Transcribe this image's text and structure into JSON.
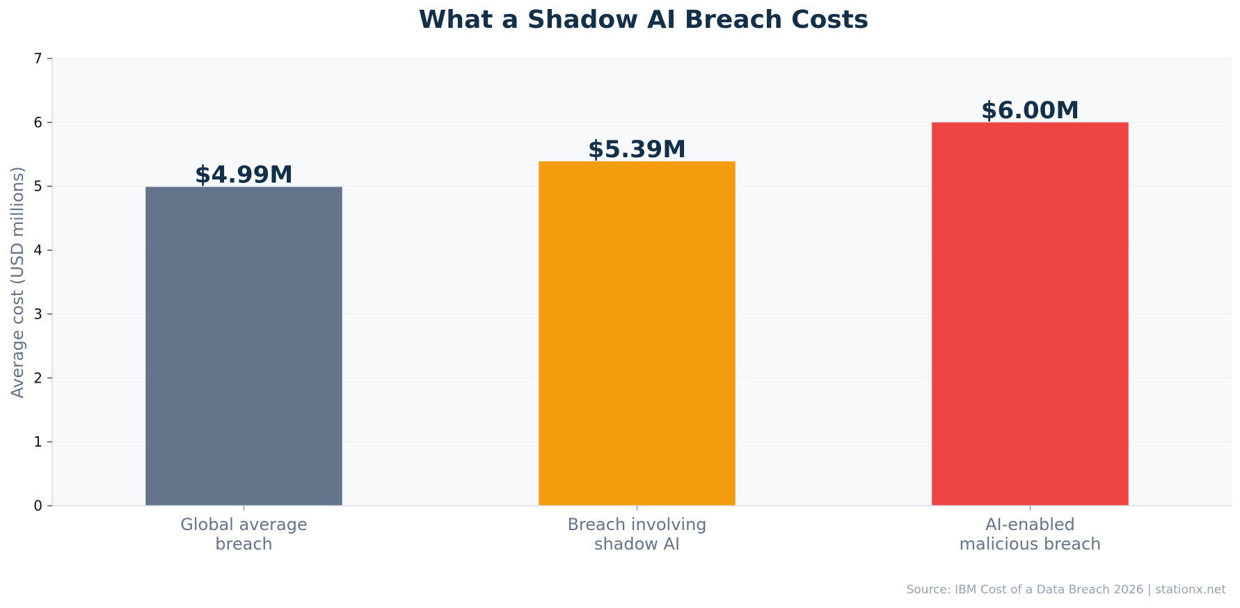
{
  "chart_data": {
    "type": "bar",
    "title": "What a Shadow AI Breach Costs",
    "xlabel": "",
    "ylabel": "Average cost (USD millions)",
    "ylim": [
      0,
      7
    ],
    "yticks": [
      0,
      1,
      2,
      3,
      4,
      5,
      6,
      7
    ],
    "grid": true,
    "categories": [
      "Global average\nbreach",
      "Breach involving\nshadow AI",
      "AI-enabled\nmalicious breach"
    ],
    "values": [
      4.99,
      5.39,
      6.0
    ],
    "data_labels": [
      "$4.99M",
      "$5.39M",
      "$6.00M"
    ],
    "colors": [
      "#64748b",
      "#f39c0e",
      "#ef4444"
    ],
    "source": "Source: IBM Cost of a Data Breach 2026 | stationx.net"
  }
}
